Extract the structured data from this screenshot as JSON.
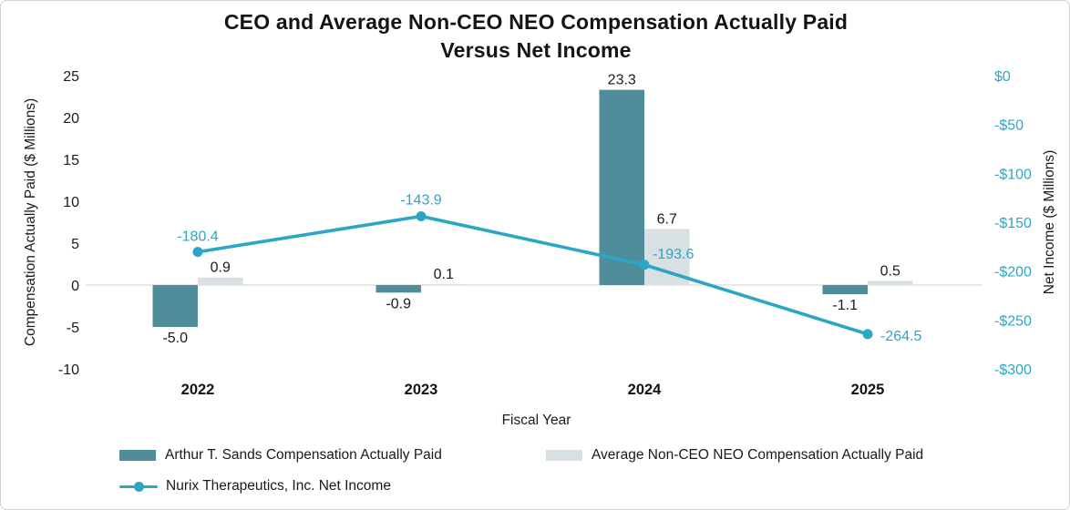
{
  "chart_data": {
    "type": "bar",
    "subtype": "grouped-bar-with-line-overlay",
    "title": "CEO and Average Non-CEO NEO Compensation Actually Paid Versus Net Income",
    "title_lines": [
      "CEO and Average Non-CEO NEO Compensation Actually Paid",
      "Versus Net Income"
    ],
    "xlabel": "Fiscal Year",
    "categories": [
      "2022",
      "2023",
      "2024",
      "2025"
    ],
    "left_axis": {
      "label": "Compensation Actually Paid ($ Millions)",
      "lim": [
        -10,
        25
      ],
      "ticks": [
        25,
        20,
        15,
        10,
        5,
        0,
        -5,
        -10
      ],
      "tick_color": "#1a1a1a"
    },
    "right_axis": {
      "label": "Net Income ($ Millions)",
      "lim": [
        -300,
        0
      ],
      "ticks": [
        {
          "label": "$0",
          "value": 0
        },
        {
          "label": "-$50",
          "value": -50
        },
        {
          "label": "-$100",
          "value": -100
        },
        {
          "label": "-$150",
          "value": -150
        },
        {
          "label": "-$200",
          "value": -200
        },
        {
          "label": "-$250",
          "value": -250
        },
        {
          "label": "-$300",
          "value": -300
        }
      ],
      "tick_color": "#2BA6C4"
    },
    "series": [
      {
        "name": "Arthur T. Sands Compensation Actually Paid",
        "type": "bar",
        "axis": "left",
        "color": "#4E8D99",
        "values": [
          -5.0,
          -0.9,
          23.3,
          -1.1
        ],
        "labels": [
          "-5.0",
          "-0.9",
          "23.3",
          "-1.1"
        ],
        "label_color": "#1a1a1a"
      },
      {
        "name": "Average Non-CEO NEO Compensation Actually Paid",
        "type": "bar",
        "axis": "left",
        "color": "#D9E0E4",
        "values": [
          0.9,
          0.1,
          6.7,
          0.5
        ],
        "labels": [
          "0.9",
          "0.1",
          "6.7",
          "0.5"
        ],
        "label_color": "#1a1a1a"
      },
      {
        "name": "Nurix Therapeutics, Inc. Net Income",
        "type": "line",
        "axis": "right",
        "color": "#2BA6C4",
        "values": [
          -180.4,
          -143.9,
          -193.6,
          -264.5
        ],
        "labels": [
          "-180.4",
          "-143.9",
          "-193.6",
          "-264.5"
        ],
        "label_color": "#2BA6C4"
      }
    ],
    "gridline_color": "#D9D9D9",
    "grid": "zero-line-only",
    "legend_position": "bottom-left"
  }
}
